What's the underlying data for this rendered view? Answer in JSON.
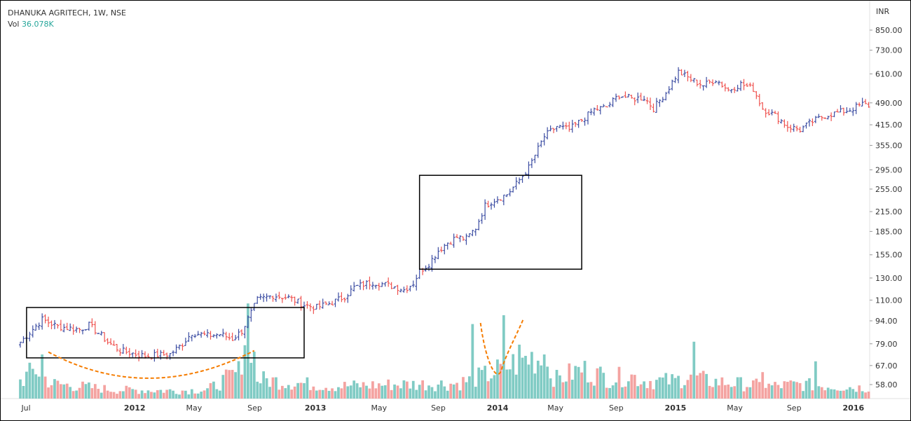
{
  "legend": {
    "symbol": "DHANUKA AGRITECH, 1W, NSE",
    "vol_label": "Vol",
    "vol_value": "36.078K"
  },
  "colors": {
    "up_bar": "#3d4ea3",
    "down_bar": "#ef5350",
    "vol_up": "#80cbc4",
    "vol_down": "#f4a3a1",
    "annotation_curve": "#f57c00",
    "annotation_box": "#000000"
  },
  "chart_data": {
    "type": "ohlc",
    "currency": "INR",
    "scale": "log",
    "y_ticks": [
      "850.00",
      "730.00",
      "610.00",
      "490.00",
      "415.00",
      "355.00",
      "295.00",
      "255.00",
      "215.00",
      "185.00",
      "155.00",
      "130.00",
      "110.00",
      "94.00",
      "79.00",
      "67.00",
      "58.00"
    ],
    "x_ticks": [
      {
        "label": "Jul",
        "bold": false
      },
      {
        "label": "2012",
        "bold": true
      },
      {
        "label": "May",
        "bold": false
      },
      {
        "label": "Sep",
        "bold": false
      },
      {
        "label": "2013",
        "bold": true
      },
      {
        "label": "May",
        "bold": false
      },
      {
        "label": "Sep",
        "bold": false
      },
      {
        "label": "2014",
        "bold": true
      },
      {
        "label": "May",
        "bold": false
      },
      {
        "label": "Sep",
        "bold": false
      },
      {
        "label": "2015",
        "bold": true
      },
      {
        "label": "May",
        "bold": false
      },
      {
        "label": "Sep",
        "bold": false
      },
      {
        "label": "2016",
        "bold": true
      }
    ],
    "price_path": [
      [
        0,
        80
      ],
      [
        7,
        95
      ],
      [
        12,
        90
      ],
      [
        19,
        88
      ],
      [
        22,
        91
      ],
      [
        26,
        84
      ],
      [
        28,
        80
      ],
      [
        32,
        75
      ],
      [
        40,
        72
      ],
      [
        48,
        73
      ],
      [
        52,
        79
      ],
      [
        55,
        86
      ],
      [
        60,
        84
      ],
      [
        64,
        85
      ],
      [
        68,
        82
      ],
      [
        71,
        87
      ],
      [
        74,
        100
      ],
      [
        76,
        110
      ],
      [
        81,
        114
      ],
      [
        86,
        112
      ],
      [
        91,
        106
      ],
      [
        95,
        104
      ],
      [
        100,
        108
      ],
      [
        104,
        113
      ],
      [
        107,
        121
      ],
      [
        110,
        124
      ],
      [
        113,
        126
      ],
      [
        115,
        125
      ],
      [
        118,
        123
      ],
      [
        121,
        121
      ],
      [
        123,
        119
      ],
      [
        126,
        125
      ],
      [
        128,
        137
      ],
      [
        131,
        145
      ],
      [
        134,
        160
      ],
      [
        137,
        170
      ],
      [
        140,
        177
      ],
      [
        143,
        175
      ],
      [
        146,
        190
      ],
      [
        149,
        225
      ],
      [
        152,
        235
      ],
      [
        156,
        245
      ],
      [
        159,
        265
      ],
      [
        163,
        300
      ],
      [
        168,
        380
      ],
      [
        172,
        410
      ],
      [
        176,
        400
      ],
      [
        180,
        430
      ],
      [
        184,
        465
      ],
      [
        188,
        475
      ],
      [
        192,
        520
      ],
      [
        196,
        505
      ],
      [
        200,
        510
      ],
      [
        203,
        470
      ],
      [
        207,
        530
      ],
      [
        211,
        620
      ],
      [
        215,
        585
      ],
      [
        219,
        560
      ],
      [
        223,
        585
      ],
      [
        227,
        540
      ],
      [
        231,
        565
      ],
      [
        235,
        545
      ],
      [
        238,
        470
      ],
      [
        242,
        445
      ],
      [
        246,
        410
      ],
      [
        250,
        400
      ],
      [
        254,
        425
      ],
      [
        258,
        445
      ],
      [
        262,
        455
      ],
      [
        266,
        465
      ],
      [
        270,
        485
      ],
      [
        272,
        480
      ]
    ],
    "volume_path": [
      [
        0,
        0.2
      ],
      [
        5,
        0.33
      ],
      [
        10,
        0.17
      ],
      [
        30,
        0.1
      ],
      [
        50,
        0.09
      ],
      [
        60,
        0.1
      ],
      [
        70,
        0.3
      ],
      [
        73,
        0.97
      ],
      [
        76,
        0.22
      ],
      [
        100,
        0.14
      ],
      [
        120,
        0.16
      ],
      [
        140,
        0.17
      ],
      [
        150,
        0.27
      ],
      [
        160,
        0.42
      ],
      [
        165,
        0.48
      ],
      [
        168,
        0.4
      ],
      [
        172,
        0.22
      ],
      [
        180,
        0.33
      ],
      [
        190,
        0.22
      ],
      [
        195,
        0.27
      ],
      [
        200,
        0.2
      ],
      [
        210,
        0.2
      ],
      [
        215,
        0.27
      ],
      [
        220,
        0.2
      ],
      [
        240,
        0.14
      ],
      [
        250,
        0.16
      ],
      [
        272,
        0.12
      ]
    ],
    "volume_spikes": [
      [
        7,
        0.45
      ],
      [
        73,
        0.97
      ],
      [
        145,
        0.76
      ],
      [
        155,
        0.85
      ],
      [
        160,
        0.55
      ],
      [
        168,
        0.45
      ],
      [
        216,
        0.58
      ],
      [
        238,
        0.27
      ],
      [
        255,
        0.38
      ]
    ],
    "annotations": {
      "box_1": {
        "from_bar": 2,
        "to_bar": 91,
        "price_high": 104,
        "price_low": 71
      },
      "box_2": {
        "from_bar": 128,
        "to_bar": 180,
        "price_high": 283,
        "price_low": 139
      },
      "curve_1": {
        "from_bar": 9,
        "to_bar": 75,
        "mid_bar": 41,
        "end_price": 75,
        "mid_price": 61
      },
      "curve_2": {
        "from_bar": 148,
        "to_bar": 161
      }
    }
  }
}
